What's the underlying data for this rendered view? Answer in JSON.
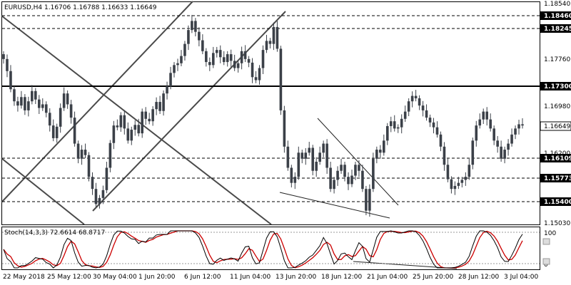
{
  "header": {
    "symbol": "EURUSD,H4",
    "ohlc": "1.16706 1.16788 1.16633 1.16649"
  },
  "indicator": {
    "label": "Stoch(14,3,3) 72.6614 68.8717"
  },
  "colors": {
    "candle": "#3b4048",
    "trendline": "#4a4a4a",
    "stoch_main": "#000000",
    "stoch_signal": "#cc0000",
    "grid": "#000000"
  },
  "chart_data": {
    "type": "candlestick",
    "symbol": "EURUSD",
    "timeframe": "H4",
    "price_axis_ticks": [
      "1.18540",
      "1.17760",
      "1.16980",
      "1.16200",
      "1.15030"
    ],
    "levels": [
      {
        "label": "1.18460",
        "style": "dashed"
      },
      {
        "label": "1.18245",
        "style": "dashed"
      },
      {
        "label": "1.17300",
        "style": "solid"
      },
      {
        "label": "1.16109",
        "style": "dashed"
      },
      {
        "label": "1.15773",
        "style": "dashed"
      },
      {
        "label": "1.15400",
        "style": "dashed"
      }
    ],
    "current_price": "1.16649",
    "time_axis": [
      "22 May 2018",
      "25 May 12:00",
      "30 May 04:00",
      "1 Jun 20:00",
      "6 Jun 12:00",
      "11 Jun 04:00",
      "13 Jun 20:00",
      "18 Jun 12:00",
      "21 Jun 04:00",
      "25 Jun 20:00",
      "28 Jun 12:00",
      "3 Jul 04:00"
    ],
    "stoch_axis": [
      "100",
      "0"
    ],
    "close_path": [
      1.1775,
      1.1755,
      1.1725,
      1.1705,
      1.1698,
      1.1712,
      1.169,
      1.1705,
      1.1722,
      1.1708,
      1.1694,
      1.17,
      1.1686,
      1.1665,
      1.1644,
      1.1663,
      1.1694,
      1.1718,
      1.17,
      1.1678,
      1.1635,
      1.161,
      1.1625,
      1.1616,
      1.158,
      1.156,
      1.1535,
      1.1545,
      1.1558,
      1.1595,
      1.1636,
      1.1665,
      1.1662,
      1.1682,
      1.166,
      1.164,
      1.1658,
      1.1666,
      1.1652,
      1.1688,
      1.1676,
      1.1672,
      1.1692,
      1.1704,
      1.1689,
      1.1718,
      1.173,
      1.1752,
      1.1765,
      1.1768,
      1.178,
      1.18,
      1.1823,
      1.1838,
      1.182,
      1.1806,
      1.1788,
      1.177,
      1.1765,
      1.1785,
      1.179,
      1.1778,
      1.177,
      1.1783,
      1.1772,
      1.176,
      1.1768,
      1.1788,
      1.1775,
      1.1769,
      1.1745,
      1.174,
      1.176,
      1.179,
      1.1805,
      1.18,
      1.1828,
      1.1792,
      1.169,
      1.163,
      1.1595,
      1.157,
      1.158,
      1.162,
      1.161,
      1.162,
      1.1628,
      1.159,
      1.1605,
      1.162,
      1.1635,
      1.1595,
      1.156,
      1.1575,
      1.159,
      1.16,
      1.158,
      1.1568,
      1.1582,
      1.16,
      1.159,
      1.156,
      1.1524,
      1.156,
      1.161,
      1.1625,
      1.162,
      1.164,
      1.1664,
      1.1672,
      1.166,
      1.1662,
      1.1676,
      1.1688,
      1.1705,
      1.1714,
      1.171,
      1.1698,
      1.169,
      1.1678,
      1.167,
      1.1662,
      1.165,
      1.163,
      1.16,
      1.1576,
      1.156,
      1.1565,
      1.157,
      1.1575,
      1.158,
      1.16,
      1.164,
      1.1665,
      1.1675,
      1.1688,
      1.1675,
      1.166,
      1.164,
      1.163,
      1.161,
      1.1625,
      1.1635,
      1.165,
      1.166,
      1.1667,
      1.1665
    ]
  }
}
